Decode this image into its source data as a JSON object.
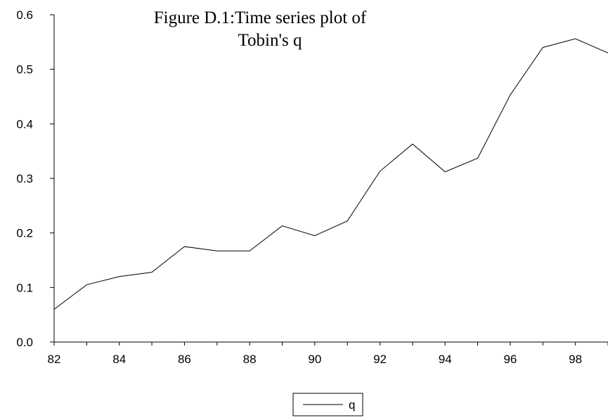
{
  "chart_data": {
    "type": "line",
    "title_line1": "Figure D.1:Time series plot of",
    "title_line2": "Tobin's q",
    "x_ticks": [
      "82",
      "84",
      "86",
      "88",
      "90",
      "92",
      "94",
      "96",
      "98"
    ],
    "y_ticks": [
      "0.0",
      "0.1",
      "0.2",
      "0.3",
      "0.4",
      "0.5",
      "0.6"
    ],
    "xlim": [
      82,
      99
    ],
    "ylim": [
      0.0,
      0.6
    ],
    "grid": false,
    "legend_position": "bottom-center",
    "x": [
      82,
      83,
      84,
      85,
      86,
      87,
      88,
      89,
      90,
      91,
      92,
      93,
      94,
      95,
      96,
      97,
      98,
      99
    ],
    "series": [
      {
        "name": "q",
        "color": "#000000",
        "values": [
          0.06,
          0.105,
          0.12,
          0.128,
          0.175,
          0.167,
          0.167,
          0.213,
          0.195,
          0.222,
          0.313,
          0.363,
          0.312,
          0.337,
          0.453,
          0.54,
          0.556,
          0.53
        ]
      }
    ]
  }
}
